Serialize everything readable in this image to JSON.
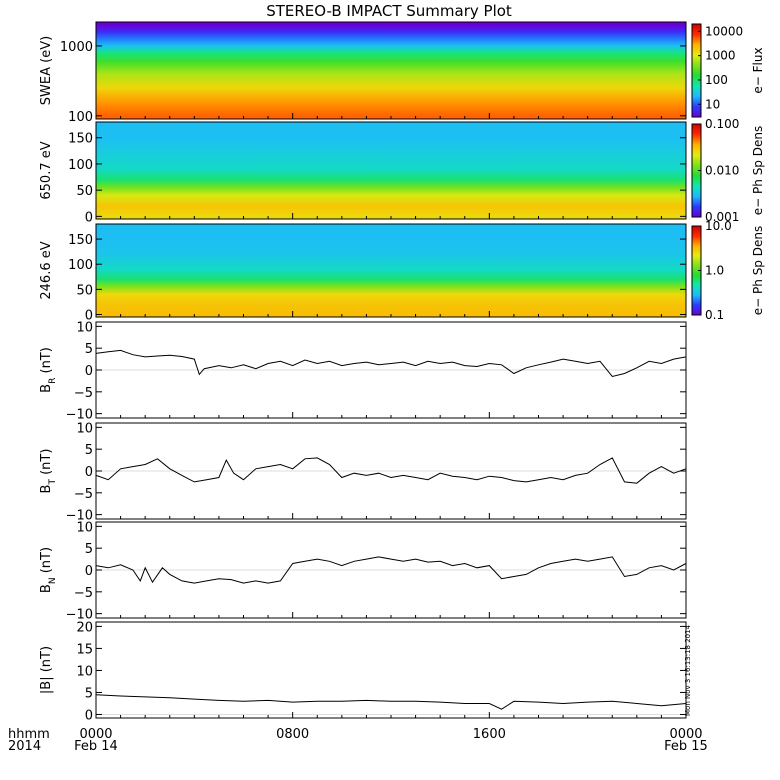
{
  "title": "STEREO-B IMPACT Summary Plot",
  "stamp": "Mon Nov  3 16:13:18 2014",
  "time_axis": {
    "row1_label": "hhmm",
    "row2_label": "2014",
    "ticks": [
      {
        "hour": 0,
        "label": "0000",
        "sub": "Feb 14"
      },
      {
        "hour": 8,
        "label": "0800",
        "sub": ""
      },
      {
        "hour": 16,
        "label": "1600",
        "sub": ""
      },
      {
        "hour": 24,
        "label": "0000",
        "sub": "Feb 15"
      }
    ],
    "range_hours": [
      0,
      24
    ]
  },
  "colors": {
    "colormap": [
      "#6a00d8",
      "#2a3cff",
      "#1fb8ff",
      "#10e6b0",
      "#22dd33",
      "#7fe21a",
      "#e6ea10",
      "#ffb000",
      "#ff2a00",
      "#d00000"
    ],
    "line": "#000000"
  },
  "chart_data": [
    {
      "type": "heatmap",
      "ylabel": "SWEA (eV)",
      "yscale": "log",
      "ylim": [
        90,
        2200
      ],
      "yticks": [
        100,
        1000
      ],
      "ytick_labels": [
        "100",
        "1000"
      ],
      "colorbar_label": "e− Flux",
      "colorbar_scale": "log",
      "colorbar_range": [
        3,
        20000
      ],
      "colorbar_ticks": [
        10,
        100,
        1000,
        10000
      ],
      "colorbar_tick_labels": [
        "10",
        "100",
        "1000",
        "10000"
      ],
      "profile_y": [
        100,
        150,
        250,
        400,
        600,
        800,
        1000,
        1300,
        1600,
        2000
      ],
      "profile_z": [
        5000,
        3500,
        1500,
        600,
        200,
        80,
        25,
        12,
        6,
        3
      ]
    },
    {
      "type": "heatmap",
      "ylabel": "650.7 eV",
      "ylim": [
        -5,
        180
      ],
      "yticks": [
        0,
        50,
        100,
        150
      ],
      "ytick_labels": [
        "0",
        "50",
        "100",
        "150"
      ],
      "colorbar_label": "e− Ph Sp Dens",
      "colorbar_scale": "log",
      "colorbar_range": [
        0.001,
        0.1
      ],
      "colorbar_ticks": [
        0.001,
        0.01,
        0.1
      ],
      "colorbar_tick_labels": [
        "0.001",
        "0.010",
        "0.100"
      ],
      "profile_y": [
        0,
        20,
        40,
        55,
        70,
        90,
        120,
        150,
        180
      ],
      "profile_z": [
        0.025,
        0.03,
        0.02,
        0.012,
        0.006,
        0.004,
        0.0035,
        0.003,
        0.003
      ]
    },
    {
      "type": "heatmap",
      "ylabel": "246.6 eV",
      "ylim": [
        -5,
        180
      ],
      "yticks": [
        0,
        50,
        100,
        150
      ],
      "ytick_labels": [
        "0",
        "50",
        "100",
        "150"
      ],
      "colorbar_label": "e− Ph Sp Dens",
      "colorbar_scale": "log",
      "colorbar_range": [
        0.1,
        10
      ],
      "colorbar_ticks": [
        0.1,
        1,
        10
      ],
      "colorbar_tick_labels": [
        "0.1",
        "1.0",
        "10.0"
      ],
      "profile_y": [
        0,
        20,
        40,
        55,
        70,
        90,
        120,
        150,
        180
      ],
      "profile_z": [
        3.2,
        3.0,
        2.5,
        1.3,
        0.6,
        0.4,
        0.32,
        0.3,
        0.3
      ]
    },
    {
      "type": "line",
      "ylabel": "B_R (nT)",
      "ylim": [
        -11,
        11
      ],
      "yticks": [
        -10,
        -5,
        0,
        5,
        10
      ],
      "ytick_labels": [
        "−10",
        "−5",
        "0",
        "5",
        "10"
      ],
      "x": [
        0,
        0.5,
        1,
        1.5,
        2,
        2.5,
        3,
        3.5,
        4,
        4.2,
        4.4,
        5,
        5.5,
        6,
        6.5,
        7,
        7.5,
        8,
        8.5,
        9,
        9.5,
        10,
        10.5,
        11,
        11.5,
        12,
        12.5,
        13,
        13.5,
        14,
        14.5,
        15,
        15.5,
        16,
        16.5,
        17,
        17.5,
        18,
        18.5,
        19,
        19.5,
        20,
        20.5,
        21,
        21.5,
        22,
        22.5,
        23,
        23.5,
        24
      ],
      "y": [
        3.8,
        4.2,
        4.5,
        3.5,
        3.0,
        3.2,
        3.4,
        3.1,
        2.5,
        -1.0,
        0.3,
        1.0,
        0.5,
        1.2,
        0.3,
        1.5,
        2.0,
        1.0,
        2.3,
        1.5,
        2.0,
        1.0,
        1.5,
        1.8,
        1.2,
        1.5,
        1.8,
        1.0,
        2.0,
        1.5,
        1.8,
        1.0,
        0.8,
        1.5,
        1.2,
        -0.8,
        0.5,
        1.2,
        1.8,
        2.5,
        2.0,
        1.5,
        2.0,
        -1.5,
        -0.8,
        0.5,
        2.0,
        1.5,
        2.5,
        3.0
      ]
    },
    {
      "type": "line",
      "ylabel": "B_T (nT)",
      "ylim": [
        -11,
        11
      ],
      "yticks": [
        -10,
        -5,
        0,
        5,
        10
      ],
      "ytick_labels": [
        "−10",
        "−5",
        "0",
        "5",
        "10"
      ],
      "x": [
        0,
        0.5,
        1,
        1.5,
        2,
        2.5,
        3,
        3.5,
        4,
        4.5,
        5,
        5.3,
        5.6,
        6,
        6.5,
        7,
        7.5,
        8,
        8.5,
        9,
        9.5,
        10,
        10.5,
        11,
        11.5,
        12,
        12.5,
        13,
        13.5,
        14,
        14.5,
        15,
        15.5,
        16,
        16.5,
        17,
        17.5,
        18,
        18.5,
        19,
        19.5,
        20,
        20.5,
        21,
        21.5,
        22,
        22.5,
        23,
        23.5,
        24
      ],
      "y": [
        -1.0,
        -2.0,
        0.5,
        1.0,
        1.5,
        2.8,
        0.5,
        -1.0,
        -2.5,
        -2.0,
        -1.5,
        2.5,
        -0.5,
        -2.0,
        0.5,
        1.0,
        1.5,
        0.5,
        2.8,
        3.0,
        1.5,
        -1.5,
        -0.5,
        -1.0,
        -0.5,
        -1.5,
        -1.0,
        -1.5,
        -2.0,
        -0.5,
        -1.2,
        -1.5,
        -2.0,
        -1.2,
        -1.5,
        -2.2,
        -2.5,
        -2.0,
        -1.5,
        -2.0,
        -1.0,
        -0.5,
        1.5,
        3.0,
        -2.5,
        -2.8,
        -0.5,
        1.0,
        -0.5,
        0.5
      ]
    },
    {
      "type": "line",
      "ylabel": "B_N (nT)",
      "ylim": [
        -11,
        11
      ],
      "yticks": [
        -10,
        -5,
        0,
        5,
        10
      ],
      "ytick_labels": [
        "−10",
        "−5",
        "0",
        "5",
        "10"
      ],
      "x": [
        0,
        0.5,
        1,
        1.5,
        1.8,
        2,
        2.3,
        2.7,
        3,
        3.5,
        4,
        4.5,
        5,
        5.5,
        6,
        6.5,
        7,
        7.5,
        8,
        8.5,
        9,
        9.5,
        10,
        10.5,
        11,
        11.5,
        12,
        12.5,
        13,
        13.5,
        14,
        14.5,
        15,
        15.5,
        16,
        16.5,
        17,
        17.5,
        18,
        18.5,
        19,
        19.5,
        20,
        20.5,
        21,
        21.5,
        22,
        22.5,
        23,
        23.5,
        24
      ],
      "y": [
        1.0,
        0.5,
        1.2,
        0.0,
        -2.5,
        0.5,
        -2.8,
        0.5,
        -1.0,
        -2.5,
        -3.0,
        -2.5,
        -2.0,
        -2.2,
        -3.0,
        -2.5,
        -3.0,
        -2.5,
        1.5,
        2.0,
        2.5,
        2.0,
        1.0,
        2.0,
        2.5,
        3.0,
        2.5,
        2.0,
        2.5,
        1.8,
        2.0,
        1.0,
        1.5,
        0.5,
        1.0,
        -2.0,
        -1.5,
        -1.0,
        0.5,
        1.5,
        2.0,
        2.5,
        2.0,
        2.5,
        3.0,
        -1.5,
        -1.0,
        0.5,
        1.0,
        0.0,
        1.5
      ]
    },
    {
      "type": "line",
      "ylabel": "|B| (nT)",
      "ylim": [
        -0.8,
        21
      ],
      "yticks": [
        0,
        5,
        10,
        15,
        20
      ],
      "ytick_labels": [
        "0",
        "5",
        "10",
        "15",
        "20"
      ],
      "x": [
        0,
        1,
        2,
        3,
        4,
        5,
        6,
        7,
        8,
        9,
        10,
        11,
        12,
        13,
        14,
        15,
        16,
        16.5,
        17,
        18,
        19,
        20,
        21,
        22,
        23,
        24
      ],
      "y": [
        4.5,
        4.2,
        4.0,
        3.8,
        3.5,
        3.2,
        3.0,
        3.2,
        2.8,
        3.0,
        3.0,
        3.2,
        3.0,
        3.0,
        2.8,
        2.5,
        2.5,
        1.2,
        3.0,
        2.8,
        2.5,
        2.8,
        3.0,
        2.5,
        2.0,
        2.5
      ]
    }
  ]
}
